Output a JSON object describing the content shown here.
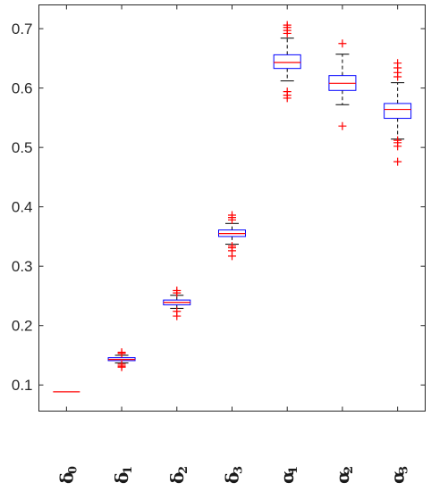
{
  "chart_data": {
    "type": "boxplot",
    "title": "",
    "xlabel": "",
    "ylabel": "",
    "ylim": [
      0.056,
      0.74
    ],
    "yticks": [
      0.1,
      0.2,
      0.3,
      0.4,
      0.5,
      0.6,
      0.7
    ],
    "ytick_labels": [
      "0.1",
      "0.2",
      "0.3",
      "0.4",
      "0.5",
      "0.6",
      "0.7"
    ],
    "grid": false,
    "legend": "none",
    "colors": {
      "box": "#0000ff",
      "median": "#ff0000",
      "whisker": "#000000",
      "outlier": "#ff0000",
      "axis": "#262626"
    },
    "categories": [
      {
        "symbol": "δ",
        "sub": "0"
      },
      {
        "symbol": "δ",
        "sub": "1"
      },
      {
        "symbol": "δ",
        "sub": "2"
      },
      {
        "symbol": "δ",
        "sub": "3"
      },
      {
        "symbol": "α",
        "sub": "1"
      },
      {
        "symbol": "α",
        "sub": "2"
      },
      {
        "symbol": "α",
        "sub": "3"
      }
    ],
    "boxes": [
      {
        "q1": 0.0885,
        "median": 0.0885,
        "q3": 0.0885,
        "whisker_low": 0.0885,
        "whisker_high": 0.0885,
        "outliers": []
      },
      {
        "q1": 0.141,
        "median": 0.143,
        "q3": 0.146,
        "whisker_low": 0.137,
        "whisker_high": 0.15,
        "outliers": [
          0.153,
          0.155,
          0.132,
          0.13,
          0.135
        ]
      },
      {
        "q1": 0.235,
        "median": 0.239,
        "q3": 0.243,
        "whisker_low": 0.229,
        "whisker_high": 0.251,
        "outliers": [
          0.255,
          0.259,
          0.224,
          0.216
        ]
      },
      {
        "q1": 0.35,
        "median": 0.355,
        "q3": 0.361,
        "whisker_low": 0.337,
        "whisker_high": 0.372,
        "outliers": [
          0.378,
          0.382,
          0.386,
          0.334,
          0.331,
          0.326,
          0.317
        ]
      },
      {
        "q1": 0.633,
        "median": 0.643,
        "q3": 0.656,
        "whisker_low": 0.612,
        "whisker_high": 0.684,
        "outliers": [
          0.692,
          0.697,
          0.702,
          0.706,
          0.594,
          0.588,
          0.583
        ]
      },
      {
        "q1": 0.596,
        "median": 0.608,
        "q3": 0.621,
        "whisker_low": 0.572,
        "whisker_high": 0.657,
        "outliers": [
          0.675,
          0.536
        ]
      },
      {
        "q1": 0.549,
        "median": 0.564,
        "q3": 0.574,
        "whisker_low": 0.514,
        "whisker_high": 0.609,
        "outliers": [
          0.642,
          0.634,
          0.626,
          0.619,
          0.512,
          0.508,
          0.502,
          0.476
        ]
      }
    ]
  }
}
